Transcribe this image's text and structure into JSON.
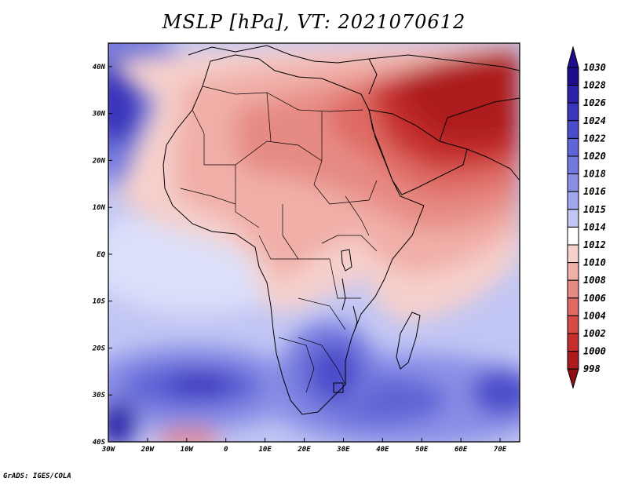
{
  "title": "MSLP [hPa], VT: 2021070612",
  "footer": "GrADS: IGES/COLA",
  "axes": {
    "x_labels": [
      "30W",
      "20W",
      "10W",
      "0",
      "10E",
      "20E",
      "30E",
      "40E",
      "50E",
      "60E",
      "70E"
    ],
    "y_labels": [
      "40N",
      "30N",
      "20N",
      "10N",
      "EQ",
      "10S",
      "20S",
      "30S",
      "40S"
    ],
    "lon_range": [
      -30,
      75
    ],
    "lat_range": [
      -40,
      45
    ]
  },
  "colorbar": {
    "levels": [
      "1030",
      "1028",
      "1026",
      "1024",
      "1022",
      "1020",
      "1018",
      "1016",
      "1015",
      "1014",
      "1012",
      "1010",
      "1008",
      "1006",
      "1004",
      "1002",
      "1000",
      "998"
    ],
    "colors": [
      "#1e0d8c",
      "#2b22a8",
      "#3a36bc",
      "#4b4ccb",
      "#5f64d6",
      "#7479de",
      "#8a8fe6",
      "#a2a7ed",
      "#c2c6f4",
      "#ffffff",
      "#f6d0cc",
      "#f0afa7",
      "#e68b84",
      "#de6a63",
      "#d44a44",
      "#c52e2d",
      "#ad1a1c",
      "#8e0f12"
    ]
  },
  "high_pressure_regions": [
    "North Atlantic",
    "South Atlantic",
    "South Indian Ocean",
    "Southern Africa"
  ],
  "low_pressure_regions": [
    "Arabian Peninsula",
    "Middle East",
    "Sahara",
    "Sahel"
  ]
}
